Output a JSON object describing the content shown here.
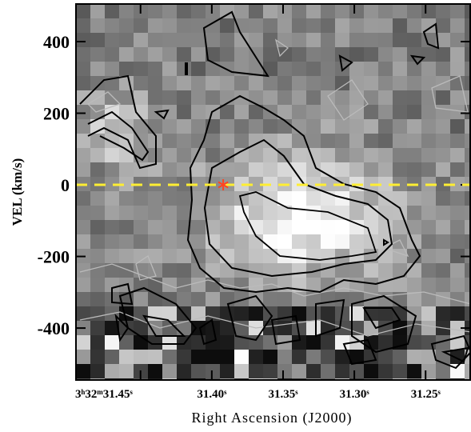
{
  "chart_data": {
    "type": "pv-map",
    "x_label": "Right Ascension (J2000)",
    "y_label": "VEL (km/s)",
    "xlim": [
      31.4953,
      31.2187
    ],
    "ylim": [
      -545,
      505
    ],
    "xticks": [
      {
        "value": 31.45,
        "label": "3ʰ32ᵐ31.45ˢ"
      },
      {
        "value": 31.4,
        "label": "31.40ˢ"
      },
      {
        "value": 31.35,
        "label": "31.35ˢ"
      },
      {
        "value": 31.3,
        "label": "31.30ˢ"
      },
      {
        "value": 31.25,
        "label": "31.25ˢ"
      }
    ],
    "yticks": [
      400,
      200,
      0,
      -200,
      -400
    ],
    "reference_line": {
      "y": 0,
      "color": "#ffee33"
    },
    "marker": {
      "x": 31.392,
      "y": 0,
      "color": "#ff4422"
    }
  }
}
